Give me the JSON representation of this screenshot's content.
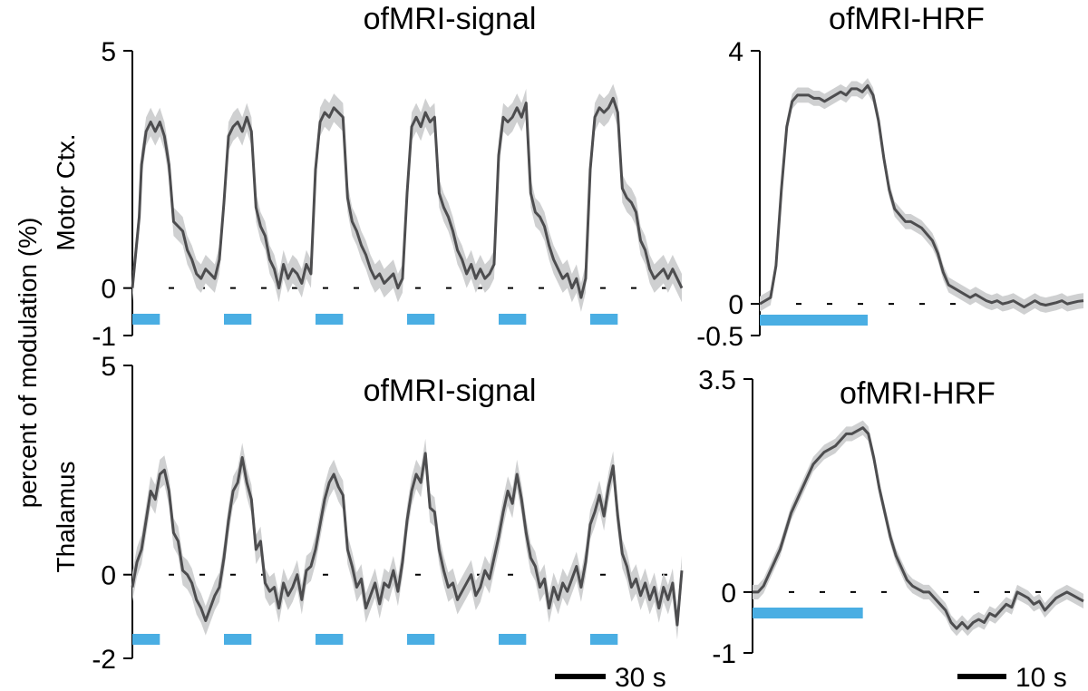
{
  "figure": {
    "ylabel": "percent of modulation (%)",
    "scalebar_signal": "30 s",
    "scalebar_hrf": "10 s"
  },
  "colors": {
    "trace": "#4d4d4f",
    "band": "#cfd0d1",
    "stim": "#4aaee3",
    "axis": "#000000"
  },
  "chart_data": [
    {
      "type": "line",
      "title": "ofMRI-signal",
      "row_label": "Motor Ctx.",
      "ylim": [
        -1,
        5
      ],
      "yticks": [
        "5",
        "0",
        "-1"
      ],
      "xlim": [
        0,
        120
      ],
      "x": [
        0,
        1.5,
        2,
        3,
        4,
        5,
        6,
        7,
        8,
        9,
        10,
        11,
        12,
        13,
        14,
        15,
        16,
        17,
        18,
        19,
        20,
        21,
        22,
        23,
        24,
        25,
        26,
        27,
        28,
        29,
        30,
        31,
        32,
        33,
        34,
        35,
        36,
        37,
        38,
        39,
        40,
        41,
        42,
        43,
        44,
        45,
        46,
        47,
        48,
        49,
        50,
        51,
        52,
        53,
        54,
        55,
        56,
        57,
        58,
        59,
        60,
        61,
        62,
        63,
        64,
        65,
        66,
        67,
        68,
        69,
        70,
        71,
        72,
        73,
        74,
        75,
        76,
        77,
        78,
        79,
        80,
        81,
        82,
        83,
        84,
        85,
        86,
        87,
        88,
        89,
        90,
        91,
        92,
        93,
        94,
        95,
        96,
        97,
        98,
        99,
        100,
        101,
        102,
        103,
        104,
        105,
        106,
        107,
        108,
        109,
        110,
        111,
        112,
        113,
        114,
        115,
        116,
        117,
        118,
        119,
        120
      ],
      "values": [
        0,
        1.5,
        2.6,
        3.3,
        3.5,
        3.3,
        3.5,
        3.2,
        2.6,
        1.4,
        1.3,
        1.2,
        0.8,
        0.6,
        0.3,
        0.2,
        0.4,
        0.3,
        0.2,
        0.6,
        1.8,
        3.2,
        3.4,
        3.5,
        3.3,
        3.6,
        3.3,
        1.7,
        1.3,
        1.1,
        0.6,
        0.4,
        0.0,
        0.5,
        0.2,
        0.4,
        0.3,
        0.1,
        0.5,
        0.3,
        2.5,
        3.5,
        3.7,
        3.6,
        3.8,
        3.7,
        3.6,
        1.9,
        1.4,
        1.2,
        0.9,
        0.7,
        0.4,
        0.2,
        0.3,
        0.1,
        0.2,
        0.3,
        0.0,
        0.2,
        2.0,
        3.4,
        3.6,
        3.4,
        3.7,
        3.5,
        3.6,
        2.0,
        1.7,
        1.5,
        1.2,
        0.8,
        0.6,
        0.3,
        0.5,
        0.2,
        0.4,
        0.2,
        0.3,
        0.5,
        2.8,
        3.6,
        3.5,
        3.6,
        3.8,
        3.6,
        3.9,
        2.0,
        1.6,
        1.5,
        1.3,
        0.9,
        0.6,
        0.4,
        0.2,
        0.3,
        0.0,
        0.2,
        -0.2,
        0.2,
        2.5,
        3.6,
        3.8,
        3.7,
        3.8,
        4.0,
        3.7,
        2.1,
        1.9,
        1.8,
        1.6,
        1.0,
        0.8,
        0.4,
        0.2,
        0.3,
        0.4,
        0.2,
        0.4,
        0.2,
        0.0
      ],
      "band_halfwidth": 0.3,
      "stim_intervals": [
        [
          0,
          6
        ],
        [
          20,
          26
        ],
        [
          40,
          46
        ],
        [
          60,
          66
        ],
        [
          80,
          86
        ],
        [
          100,
          106
        ]
      ]
    },
    {
      "type": "line",
      "title": "ofMRI-HRF",
      "ylim": [
        -0.5,
        4
      ],
      "yticks": [
        "4",
        "0",
        "-0.5"
      ],
      "xlim": [
        0,
        60
      ],
      "x": [
        0,
        1,
        2,
        3,
        4,
        5,
        6,
        7,
        8,
        9,
        10,
        11,
        12,
        13,
        14,
        15,
        16,
        17,
        18,
        19,
        20,
        21,
        22,
        23,
        24,
        25,
        26,
        27,
        28,
        29,
        30,
        31,
        32,
        33,
        34,
        35,
        36,
        37,
        38,
        39,
        40,
        41,
        42,
        43,
        44,
        45,
        46,
        47,
        48,
        49,
        50,
        51,
        52,
        53,
        54,
        55,
        56,
        57,
        58,
        59,
        60
      ],
      "values": [
        0,
        0.05,
        0.1,
        0.6,
        1.8,
        2.8,
        3.2,
        3.3,
        3.3,
        3.3,
        3.25,
        3.25,
        3.2,
        3.25,
        3.3,
        3.35,
        3.3,
        3.4,
        3.4,
        3.35,
        3.45,
        3.3,
        2.9,
        2.3,
        1.8,
        1.5,
        1.4,
        1.3,
        1.3,
        1.25,
        1.2,
        1.1,
        1.0,
        0.8,
        0.5,
        0.3,
        0.25,
        0.2,
        0.15,
        0.1,
        0.15,
        0.1,
        0.05,
        0.02,
        0.05,
        0.0,
        0.02,
        0.05,
        0.0,
        -0.05,
        0.0,
        0.05,
        0.0,
        -0.02,
        0.0,
        0.02,
        0.05,
        0.0,
        0.02,
        0.04,
        0.05
      ],
      "band_halfwidth": 0.12,
      "stim_intervals": [
        [
          0,
          20
        ]
      ]
    },
    {
      "type": "line",
      "title": "ofMRI-signal",
      "row_label": "Thalamus",
      "ylim": [
        -2,
        5
      ],
      "yticks": [
        "5",
        "0",
        "-2"
      ],
      "xlim": [
        0,
        120
      ],
      "x": [
        0,
        1,
        2,
        3,
        4,
        5,
        6,
        7,
        8,
        9,
        10,
        11,
        12,
        13,
        14,
        15,
        16,
        17,
        18,
        19,
        20,
        21,
        22,
        23,
        24,
        25,
        26,
        27,
        28,
        29,
        30,
        31,
        32,
        33,
        34,
        35,
        36,
        37,
        38,
        39,
        40,
        41,
        42,
        43,
        44,
        45,
        46,
        47,
        48,
        49,
        50,
        51,
        52,
        53,
        54,
        55,
        56,
        57,
        58,
        59,
        60,
        61,
        62,
        63,
        64,
        65,
        66,
        67,
        68,
        69,
        70,
        71,
        72,
        73,
        74,
        75,
        76,
        77,
        78,
        79,
        80,
        81,
        82,
        83,
        84,
        85,
        86,
        87,
        88,
        89,
        90,
        91,
        92,
        93,
        94,
        95,
        96,
        97,
        98,
        99,
        100,
        101,
        102,
        103,
        104,
        105,
        106,
        107,
        108,
        109,
        110,
        111,
        112,
        113,
        114,
        115,
        116,
        117,
        118,
        119,
        120
      ],
      "values": [
        -0.3,
        0.3,
        0.6,
        1.3,
        2.0,
        1.8,
        2.4,
        2.5,
        2.0,
        1.0,
        0.8,
        0.1,
        0.0,
        -0.2,
        -0.6,
        -0.8,
        -1.1,
        -0.8,
        -0.5,
        -0.3,
        0.4,
        1.3,
        2.0,
        2.2,
        2.8,
        2.2,
        1.8,
        0.6,
        0.8,
        -0.2,
        -0.4,
        -0.3,
        -0.8,
        -0.2,
        -0.5,
        -0.3,
        0.0,
        -0.6,
        0.1,
        0.2,
        0.6,
        1.2,
        1.8,
        2.2,
        2.4,
        2.1,
        1.9,
        0.6,
        0.2,
        -0.3,
        -0.1,
        -0.8,
        -0.5,
        -0.2,
        -0.7,
        -0.2,
        -0.3,
        0.1,
        -0.4,
        0.3,
        1.3,
        2.0,
        2.4,
        2.2,
        2.9,
        1.6,
        1.5,
        0.6,
        0.1,
        -0.3,
        -0.2,
        -0.6,
        -0.4,
        -0.2,
        0.0,
        -0.5,
        -0.3,
        0.1,
        -0.1,
        0.4,
        0.9,
        1.5,
        2.0,
        1.7,
        2.4,
        1.8,
        1.0,
        0.4,
        0.2,
        -0.3,
        -0.1,
        -0.8,
        -0.3,
        -0.6,
        -0.2,
        -0.4,
        -0.1,
        0.2,
        -0.3,
        0.3,
        1.2,
        1.5,
        1.9,
        1.4,
        2.1,
        2.6,
        1.4,
        0.5,
        0.2,
        -0.3,
        -0.1,
        -0.5,
        -0.2,
        -0.6,
        -0.3,
        -0.8,
        -0.3,
        -0.6,
        -0.2,
        -1.2,
        0.1
      ],
      "band_halfwidth": 0.35,
      "stim_intervals": [
        [
          0,
          6
        ],
        [
          20,
          26
        ],
        [
          40,
          46
        ],
        [
          60,
          66
        ],
        [
          80,
          86
        ],
        [
          100,
          106
        ]
      ]
    },
    {
      "type": "line",
      "title": "ofMRI-HRF",
      "ylim": [
        -1,
        3.5
      ],
      "yticks": [
        "3.5",
        "0",
        "-1"
      ],
      "xlim": [
        0,
        60
      ],
      "x": [
        0,
        1,
        2,
        3,
        4,
        5,
        6,
        7,
        8,
        9,
        10,
        11,
        12,
        13,
        14,
        15,
        16,
        17,
        18,
        19,
        20,
        21,
        22,
        23,
        24,
        25,
        26,
        27,
        28,
        29,
        30,
        31,
        32,
        33,
        34,
        35,
        36,
        37,
        38,
        39,
        40,
        41,
        42,
        43,
        44,
        45,
        46,
        47,
        48,
        49,
        50,
        51,
        52,
        53,
        54,
        55,
        56,
        57,
        58,
        59,
        60
      ],
      "values": [
        0,
        0.0,
        0.1,
        0.3,
        0.5,
        0.7,
        1.0,
        1.3,
        1.5,
        1.7,
        1.9,
        2.1,
        2.2,
        2.3,
        2.35,
        2.4,
        2.5,
        2.6,
        2.6,
        2.65,
        2.7,
        2.6,
        2.2,
        1.7,
        1.3,
        0.9,
        0.6,
        0.4,
        0.2,
        0.1,
        0.05,
        0.0,
        0.0,
        -0.1,
        -0.2,
        -0.3,
        -0.5,
        -0.6,
        -0.5,
        -0.6,
        -0.5,
        -0.45,
        -0.5,
        -0.35,
        -0.4,
        -0.3,
        -0.2,
        -0.25,
        0.0,
        -0.05,
        -0.1,
        -0.2,
        -0.15,
        -0.3,
        -0.2,
        -0.1,
        -0.05,
        0.0,
        -0.05,
        -0.1,
        -0.15
      ],
      "band_halfwidth": 0.12,
      "stim_intervals": [
        [
          0,
          20
        ]
      ]
    }
  ]
}
